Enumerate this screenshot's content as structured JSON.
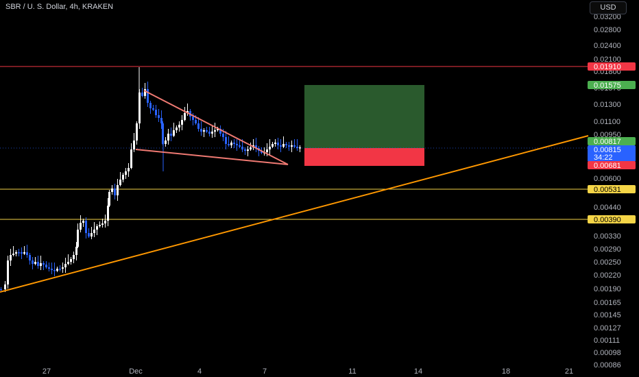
{
  "header": {
    "symbol_title": "SBR / U. S. Dollar, 4h, KRAKEN",
    "currency": "USD"
  },
  "chart_data": {
    "type": "candlestick",
    "price_axis_ticks": [
      "0.03200",
      "0.02800",
      "0.02400",
      "0.02100",
      "0.01800",
      "0.01575",
      "0.01300",
      "0.01100",
      "0.00950",
      "0.00600",
      "0.00440",
      "0.00330",
      "0.00290",
      "0.00250",
      "0.00220",
      "0.00190",
      "0.00165",
      "0.00145",
      "0.00127",
      "0.00111",
      "0.00098",
      "0.00086"
    ],
    "time_axis_ticks": [
      "27",
      "Dec",
      "4",
      "7",
      "11",
      "14",
      "18",
      "21"
    ],
    "horizontal_levels": [
      {
        "label": "0.01910",
        "color": "#f23645"
      },
      {
        "label": "0.00531",
        "color": "#f5d547"
      },
      {
        "label": "0.00390",
        "color": "#f5d547"
      }
    ],
    "price_labels": [
      {
        "label": "0.01910",
        "color": "#f23645",
        "text_color": "#ffffff"
      },
      {
        "label": "0.01575",
        "color": "#4caf50",
        "text_color": "#ffffff"
      },
      {
        "label": "0.00817",
        "color": "#4caf50",
        "text_color": "#ffffff"
      },
      {
        "label": "0.00815",
        "sub": "34:22",
        "color": "#2962ff",
        "text_color": "#ffffff"
      },
      {
        "label": "0.00681",
        "color": "#f23645",
        "text_color": "#ffffff"
      },
      {
        "label": "0.00531",
        "color": "#f5d547",
        "text_color": "#000000"
      },
      {
        "label": "0.00390",
        "color": "#f5d547",
        "text_color": "#000000"
      }
    ],
    "position_tool": {
      "target": 0.01575,
      "entry": 0.00817,
      "stop": 0.00681,
      "profit_color": "#2a5a2d",
      "loss_color": "#f23645"
    },
    "colors": {
      "up": "#ffffff",
      "down": "#2962ff",
      "trend": "#ff9800",
      "wedge": "#f07a73"
    }
  }
}
